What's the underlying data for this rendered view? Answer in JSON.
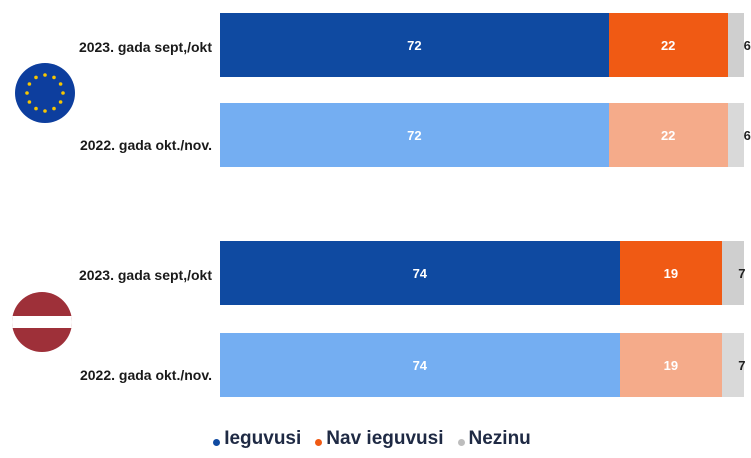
{
  "chart_data": {
    "type": "bar",
    "orientation": "horizontal",
    "stacked": true,
    "groups": [
      {
        "flag": "eu-flag",
        "rows": [
          {
            "label": "2023. gada sept,/okt",
            "values": [
              72,
              22,
              6
            ],
            "shade": "current"
          },
          {
            "label": "2022. gada okt./nov.",
            "values": [
              72,
              22,
              6
            ],
            "shade": "previous"
          }
        ]
      },
      {
        "flag": "latvia-flag",
        "rows": [
          {
            "label": "2023. gada sept,/okt",
            "values": [
              74,
              19,
              7
            ],
            "shade": "current"
          },
          {
            "label": "2022. gada okt./nov.",
            "values": [
              74,
              19,
              7
            ],
            "shade": "previous"
          }
        ]
      }
    ],
    "series": [
      {
        "name": "Ieguvusi"
      },
      {
        "name": "Nav ieguvusi"
      },
      {
        "name": "Nezinu"
      }
    ],
    "colors": {
      "current": [
        "#0f4aa1",
        "#f05a14",
        "#cfcfcf"
      ],
      "previous": [
        "#74aef2",
        "#f5ab8a",
        "#d9d9d9"
      ],
      "legend": [
        "#0f4aa1",
        "#f05a14",
        "#bdbdbd"
      ]
    },
    "xlim": [
      0,
      100
    ],
    "legend_position": "bottom-center"
  }
}
